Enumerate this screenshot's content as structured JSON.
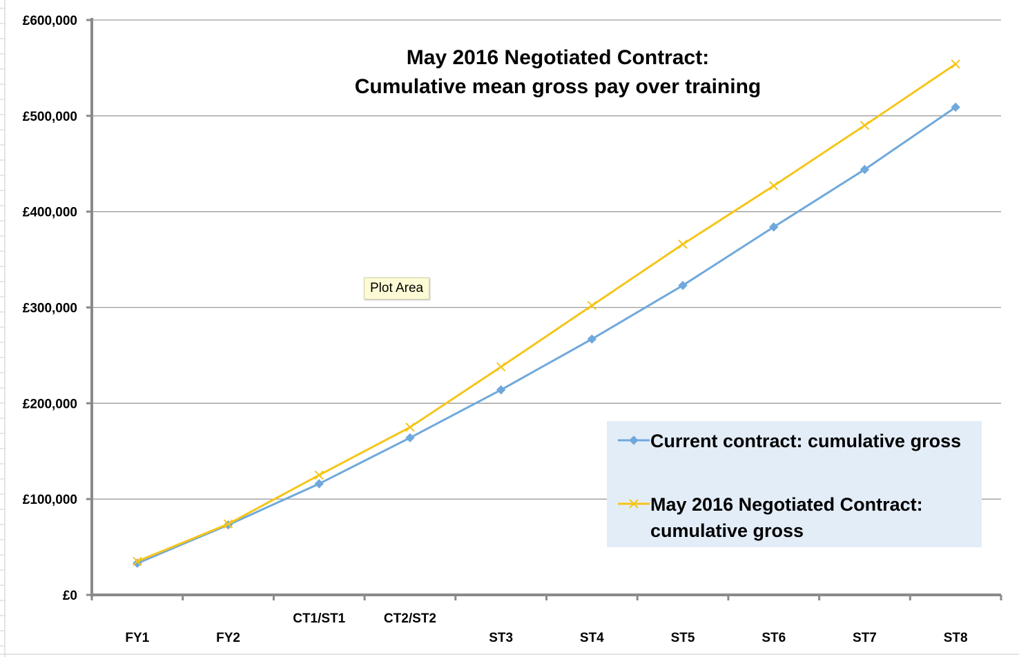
{
  "chart_data": {
    "type": "line",
    "title": [
      "May 2016 Negotiated Contract:",
      "Cumulative mean gross pay over training"
    ],
    "categories": [
      "FY1",
      "FY2",
      "CT1/ST1",
      "CT2/ST2",
      "ST3",
      "ST4",
      "ST5",
      "ST6",
      "ST7",
      "ST8"
    ],
    "ylim": [
      0,
      600000
    ],
    "yticks": [
      "£0",
      "£100,000",
      "£200,000",
      "£300,000",
      "£400,000",
      "£500,000",
      "£600,000"
    ],
    "grid": true,
    "legend_position": "bottom-right",
    "series": [
      {
        "name": "Current contract: cumulative gross",
        "name_lines": [
          "Current contract: cumulative gross"
        ],
        "color": "#6fa8dc",
        "marker": "diamond",
        "values": [
          33000,
          73000,
          116000,
          164000,
          214000,
          267000,
          323000,
          384000,
          444000,
          509000
        ]
      },
      {
        "name": "May 2016 Negotiated Contract: cumulative gross",
        "name_lines": [
          "May 2016 Negotiated Contract:",
          "cumulative gross"
        ],
        "color": "#f5c518",
        "marker": "x",
        "values": [
          35000,
          74000,
          125000,
          175000,
          238000,
          302000,
          366000,
          427000,
          490000,
          554000
        ]
      }
    ]
  },
  "tooltip": {
    "text": "Plot Area"
  }
}
